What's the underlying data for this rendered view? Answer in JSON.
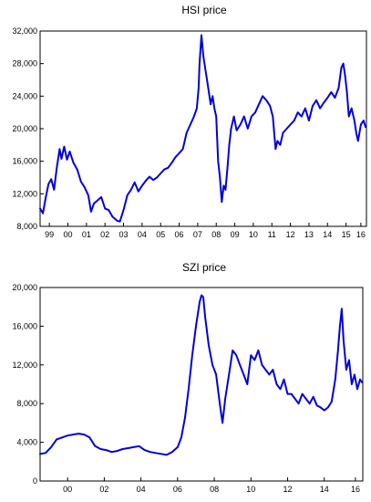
{
  "chart_data": [
    {
      "type": "line",
      "title": "HSI price",
      "xlabel": "",
      "ylabel": "",
      "color": "#0000dd",
      "grid": false,
      "xlim": [
        1999.0,
        2016.6
      ],
      "ylim": [
        8000,
        32000
      ],
      "yticks": [
        "8,000",
        "12,000",
        "16,000",
        "20,000",
        "24,000",
        "28,000",
        "32,000"
      ],
      "ytick_values": [
        8000,
        12000,
        16000,
        20000,
        24000,
        28000,
        32000
      ],
      "xticks": [
        "99",
        "00",
        "01",
        "02",
        "03",
        "04",
        "05",
        "06",
        "07",
        "08",
        "09",
        "10",
        "11",
        "12",
        "13",
        "14",
        "15",
        "16"
      ],
      "xtick_values": [
        1999.5,
        2000.5,
        2001.5,
        2002.5,
        2003.5,
        2004.5,
        2005.5,
        2006.5,
        2007.5,
        2008.5,
        2009.5,
        2010.5,
        2011.5,
        2012.5,
        2013.5,
        2014.5,
        2015.5,
        2016.3
      ],
      "x": [
        1999.0,
        1999.15,
        1999.3,
        1999.45,
        1999.6,
        1999.75,
        1999.9,
        2000.05,
        2000.15,
        2000.3,
        2000.45,
        2000.6,
        2000.8,
        2001.0,
        2001.2,
        2001.4,
        2001.6,
        2001.75,
        2001.9,
        2002.1,
        2002.3,
        2002.5,
        2002.7,
        2002.9,
        2003.15,
        2003.3,
        2003.5,
        2003.7,
        2003.9,
        2004.1,
        2004.3,
        2004.5,
        2004.7,
        2004.9,
        2005.1,
        2005.3,
        2005.5,
        2005.7,
        2005.9,
        2006.1,
        2006.3,
        2006.5,
        2006.7,
        2006.9,
        2007.1,
        2007.3,
        2007.45,
        2007.55,
        2007.6,
        2007.7,
        2007.8,
        2007.9,
        2008.0,
        2008.1,
        2008.2,
        2008.3,
        2008.4,
        2008.5,
        2008.6,
        2008.7,
        2008.8,
        2008.9,
        2009.0,
        2009.1,
        2009.2,
        2009.3,
        2009.45,
        2009.6,
        2009.8,
        2010.0,
        2010.2,
        2010.4,
        2010.6,
        2010.8,
        2011.0,
        2011.2,
        2011.4,
        2011.55,
        2011.7,
        2011.8,
        2011.95,
        2012.1,
        2012.3,
        2012.5,
        2012.7,
        2012.9,
        2013.1,
        2013.3,
        2013.5,
        2013.7,
        2013.9,
        2014.1,
        2014.3,
        2014.5,
        2014.7,
        2014.9,
        2015.1,
        2015.25,
        2015.35,
        2015.45,
        2015.55,
        2015.65,
        2015.8,
        2015.95,
        2016.05,
        2016.15,
        2016.3,
        2016.45,
        2016.55
      ],
      "values": [
        10200,
        9600,
        11500,
        13200,
        13800,
        12500,
        15200,
        17500,
        16300,
        17800,
        16200,
        17200,
        15800,
        15000,
        13500,
        12800,
        11800,
        9800,
        10800,
        11200,
        11600,
        10200,
        10000,
        9200,
        8700,
        8600,
        10000,
        11800,
        12500,
        13400,
        12300,
        13000,
        13600,
        14100,
        13700,
        14000,
        14500,
        15000,
        15200,
        15800,
        16500,
        17000,
        17500,
        19500,
        20500,
        21500,
        22500,
        25000,
        28000,
        31500,
        29000,
        27500,
        26000,
        24500,
        23000,
        24000,
        22500,
        21500,
        16000,
        14000,
        11000,
        13000,
        12500,
        15000,
        18000,
        20000,
        21500,
        19800,
        20500,
        21500,
        20000,
        21500,
        22000,
        23000,
        24000,
        23500,
        22800,
        21500,
        17500,
        18500,
        18000,
        19500,
        20000,
        20500,
        21000,
        22000,
        21500,
        22500,
        21000,
        22800,
        23500,
        22500,
        23200,
        23800,
        24500,
        23800,
        25000,
        27500,
        28000,
        26500,
        24500,
        21500,
        22500,
        21000,
        19500,
        18500,
        20500,
        21000,
        20200
      ]
    },
    {
      "type": "line",
      "title": "SZI price",
      "xlabel": "",
      "ylabel": "",
      "color": "#0000dd",
      "grid": false,
      "xlim": [
        1999.0,
        2016.6
      ],
      "ylim": [
        0,
        20000
      ],
      "yticks": [
        "0",
        "4,000",
        "8,000",
        "12,000",
        "16,000",
        "20,000"
      ],
      "ytick_values": [
        0,
        4000,
        8000,
        12000,
        16000,
        20000
      ],
      "xticks": [
        "00",
        "02",
        "04",
        "06",
        "08",
        "10",
        "12",
        "14",
        "16"
      ],
      "xtick_values": [
        2000.5,
        2002.5,
        2004.5,
        2006.5,
        2008.5,
        2010.5,
        2012.5,
        2014.5,
        2016.2
      ],
      "x": [
        1999.0,
        1999.3,
        1999.6,
        1999.9,
        2000.2,
        2000.5,
        2000.8,
        2001.1,
        2001.4,
        2001.7,
        2002.0,
        2002.3,
        2002.6,
        2002.9,
        2003.2,
        2003.5,
        2003.8,
        2004.1,
        2004.4,
        2004.7,
        2005.0,
        2005.3,
        2005.6,
        2005.9,
        2006.2,
        2006.5,
        2006.7,
        2006.9,
        2007.1,
        2007.3,
        2007.5,
        2007.7,
        2007.8,
        2007.9,
        2008.0,
        2008.2,
        2008.4,
        2008.6,
        2008.8,
        2008.95,
        2009.1,
        2009.3,
        2009.5,
        2009.7,
        2009.9,
        2010.1,
        2010.3,
        2010.5,
        2010.7,
        2010.9,
        2011.1,
        2011.3,
        2011.5,
        2011.7,
        2011.9,
        2012.1,
        2012.3,
        2012.5,
        2012.7,
        2012.9,
        2013.1,
        2013.3,
        2013.5,
        2013.7,
        2013.9,
        2014.1,
        2014.3,
        2014.5,
        2014.7,
        2014.9,
        2015.1,
        2015.25,
        2015.35,
        2015.45,
        2015.55,
        2015.7,
        2015.85,
        2016.0,
        2016.15,
        2016.3,
        2016.45,
        2016.55
      ],
      "values": [
        2800,
        2900,
        3500,
        4300,
        4500,
        4700,
        4800,
        4900,
        4800,
        4500,
        3600,
        3300,
        3200,
        3000,
        3100,
        3300,
        3400,
        3500,
        3600,
        3200,
        3000,
        2900,
        2800,
        2700,
        3000,
        3500,
        4500,
        6500,
        9500,
        13000,
        16000,
        18500,
        19200,
        19000,
        17000,
        14000,
        12000,
        11000,
        8000,
        6000,
        8500,
        11000,
        13500,
        13000,
        12000,
        11000,
        10000,
        13000,
        12500,
        13500,
        12000,
        11500,
        11000,
        11500,
        10000,
        9500,
        10500,
        9000,
        9000,
        8500,
        8000,
        9000,
        8500,
        8000,
        8700,
        7800,
        7600,
        7300,
        7600,
        8200,
        10500,
        13500,
        16000,
        17800,
        14500,
        11500,
        12500,
        10000,
        11000,
        9500,
        10500,
        10200
      ]
    }
  ]
}
